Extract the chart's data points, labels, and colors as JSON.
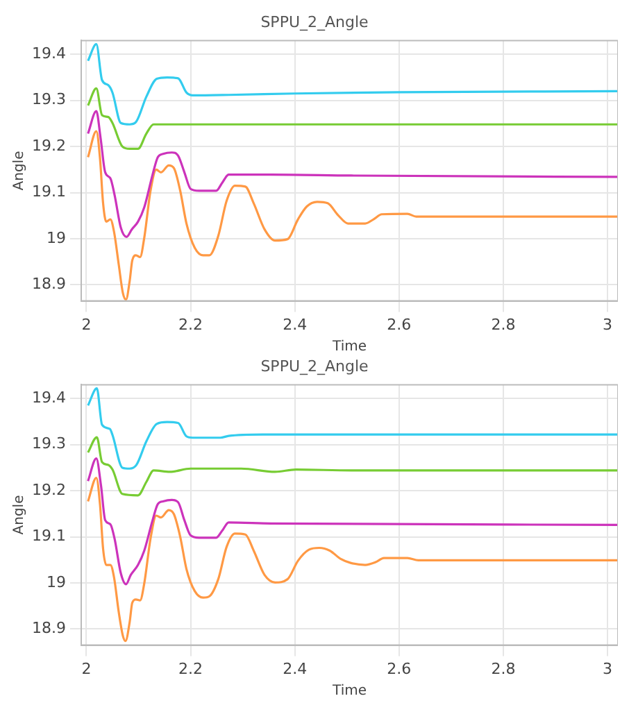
{
  "chart_data": [
    {
      "type": "line",
      "title": "SPPU_2_Angle",
      "xlabel": "Time",
      "ylabel": "Angle",
      "xlim": [
        1.99,
        3.02
      ],
      "ylim": [
        18.865,
        19.43
      ],
      "xticks": [
        2,
        2.2,
        2.4,
        2.6,
        2.8,
        3
      ],
      "yticks": [
        18.9,
        19,
        19.1,
        19.2,
        19.3,
        19.4
      ],
      "grid": true,
      "series": [
        {
          "color": "#33ccee",
          "x": [
            2.003,
            2.019,
            2.03,
            2.042,
            2.05,
            2.066,
            2.083,
            2.095,
            2.115,
            2.135,
            2.155,
            2.176,
            2.192,
            2.204,
            2.273,
            2.4,
            2.6,
            3.02
          ],
          "values": [
            19.386,
            19.422,
            19.344,
            19.333,
            19.317,
            19.251,
            19.248,
            19.253,
            19.308,
            19.347,
            19.35,
            19.348,
            19.317,
            19.311,
            19.312,
            19.315,
            19.318,
            19.32
          ]
        },
        {
          "color": "#77cc33",
          "x": [
            2.003,
            2.019,
            2.03,
            2.042,
            2.05,
            2.069,
            2.083,
            2.099,
            2.115,
            2.129,
            2.5,
            3.02
          ],
          "values": [
            19.289,
            19.326,
            19.268,
            19.264,
            19.251,
            19.2,
            19.195,
            19.195,
            19.228,
            19.248,
            19.248,
            19.248
          ]
        },
        {
          "color": "#cc33bb",
          "x": [
            2.003,
            2.019,
            2.027,
            2.036,
            2.046,
            2.054,
            2.066,
            2.077,
            2.087,
            2.099,
            2.111,
            2.127,
            2.137,
            2.147,
            2.164,
            2.176,
            2.188,
            2.2,
            2.216,
            2.249,
            2.261,
            2.273,
            2.354,
            2.508,
            3.02
          ],
          "values": [
            19.228,
            19.277,
            19.22,
            19.144,
            19.131,
            19.095,
            19.024,
            19.004,
            19.02,
            19.037,
            19.068,
            19.139,
            19.177,
            19.184,
            19.187,
            19.18,
            19.144,
            19.108,
            19.104,
            19.104,
            19.122,
            19.139,
            19.139,
            19.137,
            19.134
          ]
        },
        {
          "color": "#ff9944",
          "x": [
            2.003,
            2.019,
            2.026,
            2.032,
            2.038,
            2.046,
            2.053,
            2.062,
            2.07,
            2.076,
            2.083,
            2.088,
            2.095,
            2.103,
            2.111,
            2.123,
            2.134,
            2.143,
            2.158,
            2.168,
            2.18,
            2.192,
            2.208,
            2.224,
            2.236,
            2.253,
            2.269,
            2.285,
            2.305,
            2.321,
            2.342,
            2.362,
            2.386,
            2.406,
            2.423,
            2.443,
            2.463,
            2.483,
            2.502,
            2.535,
            2.551,
            2.567,
            2.616,
            2.633,
            3.02
          ],
          "values": [
            19.177,
            19.233,
            19.175,
            19.077,
            19.037,
            19.042,
            19.015,
            18.944,
            18.882,
            18.868,
            18.908,
            18.953,
            18.964,
            18.96,
            19.002,
            19.104,
            19.15,
            19.144,
            19.159,
            19.153,
            19.104,
            19.033,
            18.98,
            18.964,
            18.964,
            19.006,
            19.082,
            19.115,
            19.113,
            19.077,
            19.02,
            18.996,
            18.999,
            19.042,
            19.07,
            19.08,
            19.077,
            19.051,
            19.033,
            19.033,
            19.042,
            19.053,
            19.054,
            19.048,
            19.048
          ]
        }
      ]
    },
    {
      "type": "line",
      "title": "SPPU_2_Angle",
      "xlabel": "Time",
      "ylabel": "Angle",
      "xlim": [
        1.99,
        3.02
      ],
      "ylim": [
        18.865,
        19.43
      ],
      "xticks": [
        2,
        2.2,
        2.4,
        2.6,
        2.8,
        3
      ],
      "yticks": [
        18.9,
        19,
        19.1,
        19.2,
        19.3,
        19.4
      ],
      "grid": true,
      "series": [
        {
          "color": "#33ccee",
          "x": [
            2.003,
            2.02,
            2.03,
            2.045,
            2.05,
            2.069,
            2.083,
            2.096,
            2.115,
            2.135,
            2.155,
            2.176,
            2.192,
            2.204,
            2.257,
            2.273,
            2.338,
            3.02
          ],
          "values": [
            19.385,
            19.422,
            19.343,
            19.334,
            19.321,
            19.25,
            19.248,
            19.256,
            19.307,
            19.345,
            19.349,
            19.347,
            19.318,
            19.315,
            19.315,
            19.319,
            19.322,
            19.322
          ]
        },
        {
          "color": "#77cc33",
          "x": [
            2.003,
            2.02,
            2.03,
            2.042,
            2.05,
            2.069,
            2.099,
            2.115,
            2.129,
            2.16,
            2.2,
            2.249,
            2.297,
            2.362,
            2.402,
            2.508,
            3.02
          ],
          "values": [
            19.283,
            19.316,
            19.262,
            19.256,
            19.246,
            19.193,
            19.19,
            19.219,
            19.244,
            19.241,
            19.248,
            19.248,
            19.248,
            19.241,
            19.246,
            19.244,
            19.244
          ]
        },
        {
          "color": "#cc33bb",
          "x": [
            2.003,
            2.019,
            2.028,
            2.036,
            2.046,
            2.054,
            2.066,
            2.076,
            2.085,
            2.099,
            2.111,
            2.127,
            2.137,
            2.147,
            2.164,
            2.176,
            2.188,
            2.2,
            2.216,
            2.249,
            2.261,
            2.273,
            2.354,
            3.02
          ],
          "values": [
            19.221,
            19.27,
            19.211,
            19.136,
            19.127,
            19.096,
            19.021,
            18.997,
            19.017,
            19.039,
            19.07,
            19.136,
            19.171,
            19.177,
            19.18,
            19.175,
            19.136,
            19.103,
            19.098,
            19.098,
            19.114,
            19.131,
            19.129,
            19.126
          ]
        },
        {
          "color": "#ff9944",
          "x": [
            2.003,
            2.019,
            2.026,
            2.032,
            2.038,
            2.046,
            2.053,
            2.062,
            2.07,
            2.075,
            2.083,
            2.088,
            2.095,
            2.103,
            2.111,
            2.123,
            2.134,
            2.143,
            2.158,
            2.168,
            2.18,
            2.192,
            2.208,
            2.224,
            2.236,
            2.253,
            2.269,
            2.285,
            2.305,
            2.321,
            2.342,
            2.362,
            2.386,
            2.406,
            2.427,
            2.447,
            2.467,
            2.488,
            2.508,
            2.535,
            2.555,
            2.571,
            2.616,
            2.637,
            3.02
          ],
          "values": [
            19.177,
            19.228,
            19.171,
            19.074,
            19.039,
            19.039,
            19.012,
            18.937,
            18.885,
            18.874,
            18.915,
            18.957,
            18.964,
            18.962,
            18.999,
            19.096,
            19.146,
            19.142,
            19.158,
            19.149,
            19.1,
            19.03,
            18.982,
            18.968,
            18.971,
            19.008,
            19.078,
            19.107,
            19.105,
            19.07,
            19.017,
            19.001,
            19.008,
            19.048,
            19.072,
            19.076,
            19.07,
            19.052,
            19.043,
            19.039,
            19.045,
            19.054,
            19.054,
            19.049,
            19.049
          ]
        }
      ]
    }
  ]
}
